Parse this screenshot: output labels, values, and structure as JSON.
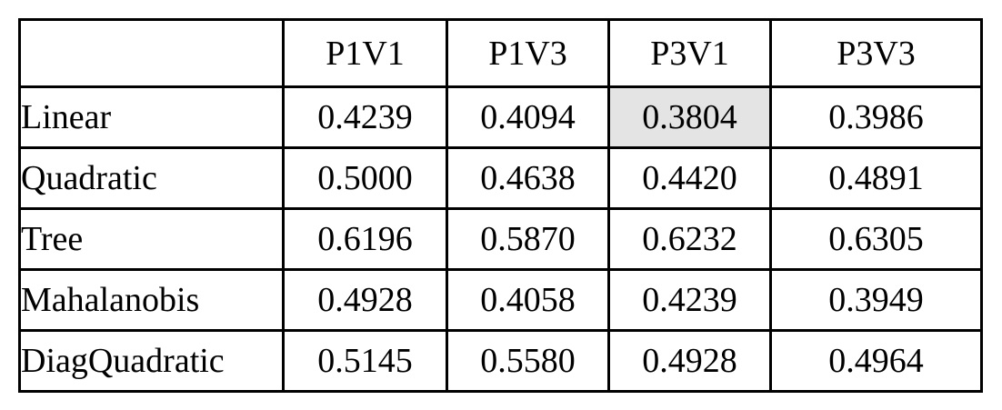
{
  "table": {
    "corner": "",
    "columns": [
      "P1V1",
      "P1V3",
      "P3V1",
      "P3V3"
    ],
    "highlight_color": "#e4e4e4",
    "rows": [
      {
        "label": "Linear",
        "values": [
          "0.4239",
          "0.4094",
          "0.3804",
          "0.3986"
        ],
        "highlight_col": 2
      },
      {
        "label": "Quadratic",
        "values": [
          "0.5000",
          "0.4638",
          "0.4420",
          "0.4891"
        ]
      },
      {
        "label": "Tree",
        "values": [
          "0.6196",
          "0.5870",
          "0.6232",
          "0.6305"
        ]
      },
      {
        "label": "Mahalanobis",
        "values": [
          "0.4928",
          "0.4058",
          "0.4239",
          "0.3949"
        ]
      },
      {
        "label": "DiagQuadratic",
        "values": [
          "0.5145",
          "0.5580",
          "0.4928",
          "0.4964"
        ]
      }
    ]
  }
}
